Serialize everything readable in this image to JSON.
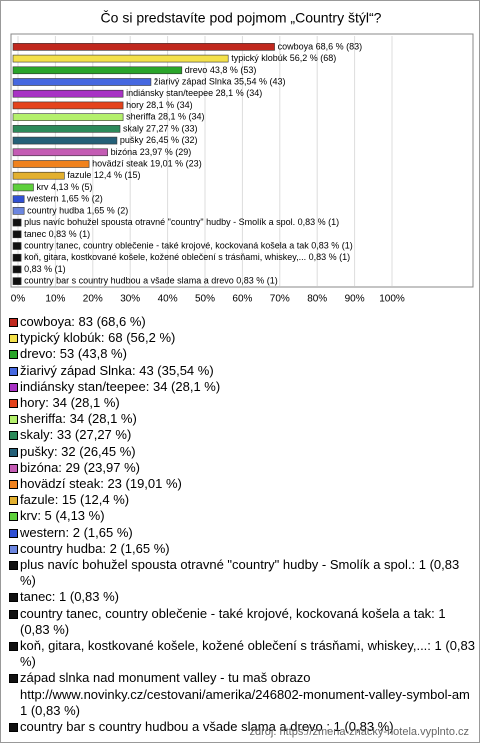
{
  "chart_data": {
    "type": "bar",
    "orientation": "horizontal",
    "title": "Čo si predstavíte pod pojmom „Country štýl“?",
    "categories": [
      "cowboya",
      "typický klobúk",
      "drevo",
      "žiarivý západ Slnka",
      "indiánsky stan/teepee",
      "hory",
      "sheriffa",
      "skaly",
      "pušky",
      "bizóna",
      "hovädzí steak",
      "fazule",
      "krv",
      "western",
      "country hudba",
      "plus navíc bohužel spousta otravné \"country\" hudby - Smolík a spol.",
      "tanec",
      "country tanec, country oblečenie - také krojové, kockovaná košela a tak",
      "koň, gitara, kostkované košele, kožené oblečení s trásňami, whiskey,...",
      null,
      "country bar s country hudbou a všade slama a drevo "
    ],
    "values": [
      68.6,
      56.2,
      43.8,
      35.54,
      28.1,
      28.1,
      28.1,
      27.27,
      26.45,
      23.97,
      19.01,
      12.4,
      4.13,
      1.65,
      1.65,
      0.83,
      0.83,
      0.83,
      0.83,
      0.83,
      0.83
    ],
    "value_labels": [
      "68,6 % (83)",
      "56,2 % (68)",
      "43,8 % (53)",
      "35,54 % (43)",
      "28,1 % (34)",
      "28,1 % (34)",
      "28,1 % (34)",
      "27,27 % (33)",
      "26,45 % (32)",
      "23,97 % (29)",
      "19,01 % (23)",
      "12,4 % (15)",
      "4,13 % (5)",
      "1,65 % (2)",
      "1,65 % (2)",
      "0,83 % (1)",
      "0,83 % (1)",
      "0,83 % (1)",
      "0,83 % (1)",
      "0,83 % (1)",
      "0,83 % (1)"
    ],
    "colors": [
      "#c0281e",
      "#f3e04a",
      "#2aa52a",
      "#4668e0",
      "#a832c4",
      "#e4421c",
      "#b4f06c",
      "#2c8a5a",
      "#246078",
      "#c45cb4",
      "#f0821e",
      "#e2b030",
      "#5ed03c",
      "#3050d4",
      "#6c86e0",
      "#111111",
      "#111111",
      "#111111",
      "#111111",
      "#111111",
      "#111111"
    ],
    "xlim": [
      0,
      100
    ],
    "xticks": [
      {
        "value": 0,
        "label": "0%"
      },
      {
        "value": 10,
        "label": "10%"
      },
      {
        "value": 20,
        "label": "20%"
      },
      {
        "value": 30,
        "label": "30%"
      },
      {
        "value": 40,
        "label": "40%"
      },
      {
        "value": 50,
        "label": "50%"
      },
      {
        "value": 60,
        "label": "60%"
      },
      {
        "value": 70,
        "label": "70%"
      },
      {
        "value": 80,
        "label": "80%"
      },
      {
        "value": 90,
        "label": "90%"
      },
      {
        "value": 100,
        "label": "100%"
      }
    ],
    "grid": true,
    "legend": [
      "cowboya: 83 (68,6 %)",
      "typický klobúk: 68 (56,2 %)",
      "drevo: 53 (43,8 %)",
      "žiarivý západ Slnka: 43 (35,54 %)",
      "indiánsky stan/teepee: 34 (28,1 %)",
      "hory: 34 (28,1 %)",
      "sheriffa: 34 (28,1 %)",
      "skaly: 33 (27,27 %)",
      "pušky: 32 (26,45 %)",
      "bizóna: 29 (23,97 %)",
      "hovädzí steak: 23 (19,01 %)",
      "fazule: 15 (12,4 %)",
      "krv: 5 (4,13 %)",
      "western: 2 (1,65 %)",
      "country hudba: 2 (1,65 %)",
      "plus navíc bohužel spousta otravné \"country\" hudby - Smolík a spol.: 1 (0,83 %)",
      "tanec: 1 (0,83 %)",
      "country tanec, country oblečenie - také krojové, kockovaná košela a tak: 1 (0,83 %)",
      "koň, gitara, kostkované košele, kožené oblečení s trásňami, whiskey,...: 1 (0,83 %)",
      "západ slnka nad monument valley - tu maš obrazo http://www.novinky.cz/cestovani/amerika/246802-monument-valley-symbol-am 1 (0,83 %)",
      "country bar s country hudbou a všade slama a drevo : 1 (0,83 %)"
    ],
    "source": "zdroj: https://zmena-znacky-hotela.vyplnto.cz"
  }
}
